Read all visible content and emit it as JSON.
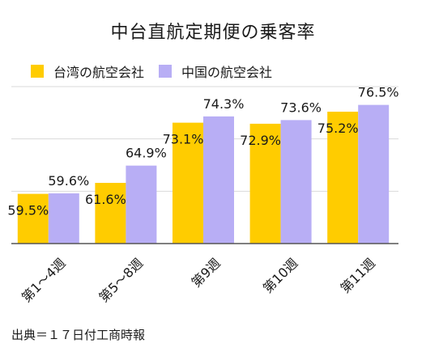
{
  "chart_data": {
    "type": "bar",
    "title": "中台直航定期便の乗客率",
    "categories": [
      "第1～4週",
      "第5～8週",
      "第9週",
      "第10週",
      "第11週"
    ],
    "series": [
      {
        "name": "台湾の航空会社",
        "values": [
          59.5,
          61.6,
          73.1,
          72.9,
          75.2
        ],
        "labels": [
          "59.5%",
          "61.6%",
          "73.1%",
          "72.9%",
          "75.2%"
        ]
      },
      {
        "name": "中国の航空会社",
        "values": [
          59.6,
          64.9,
          74.3,
          73.6,
          76.5
        ],
        "labels": [
          "59.6%",
          "64.9%",
          "74.3%",
          "73.6%",
          "76.5%"
        ]
      }
    ],
    "ylim": [
      50,
      80
    ],
    "grid": true,
    "legend_position": "top-left",
    "colors": {
      "series": [
        "#ffcc00",
        "#b8aef5"
      ],
      "grid": "#d9d9d9",
      "axis": "#555555"
    }
  },
  "source": "出典＝１７日付工商時報"
}
